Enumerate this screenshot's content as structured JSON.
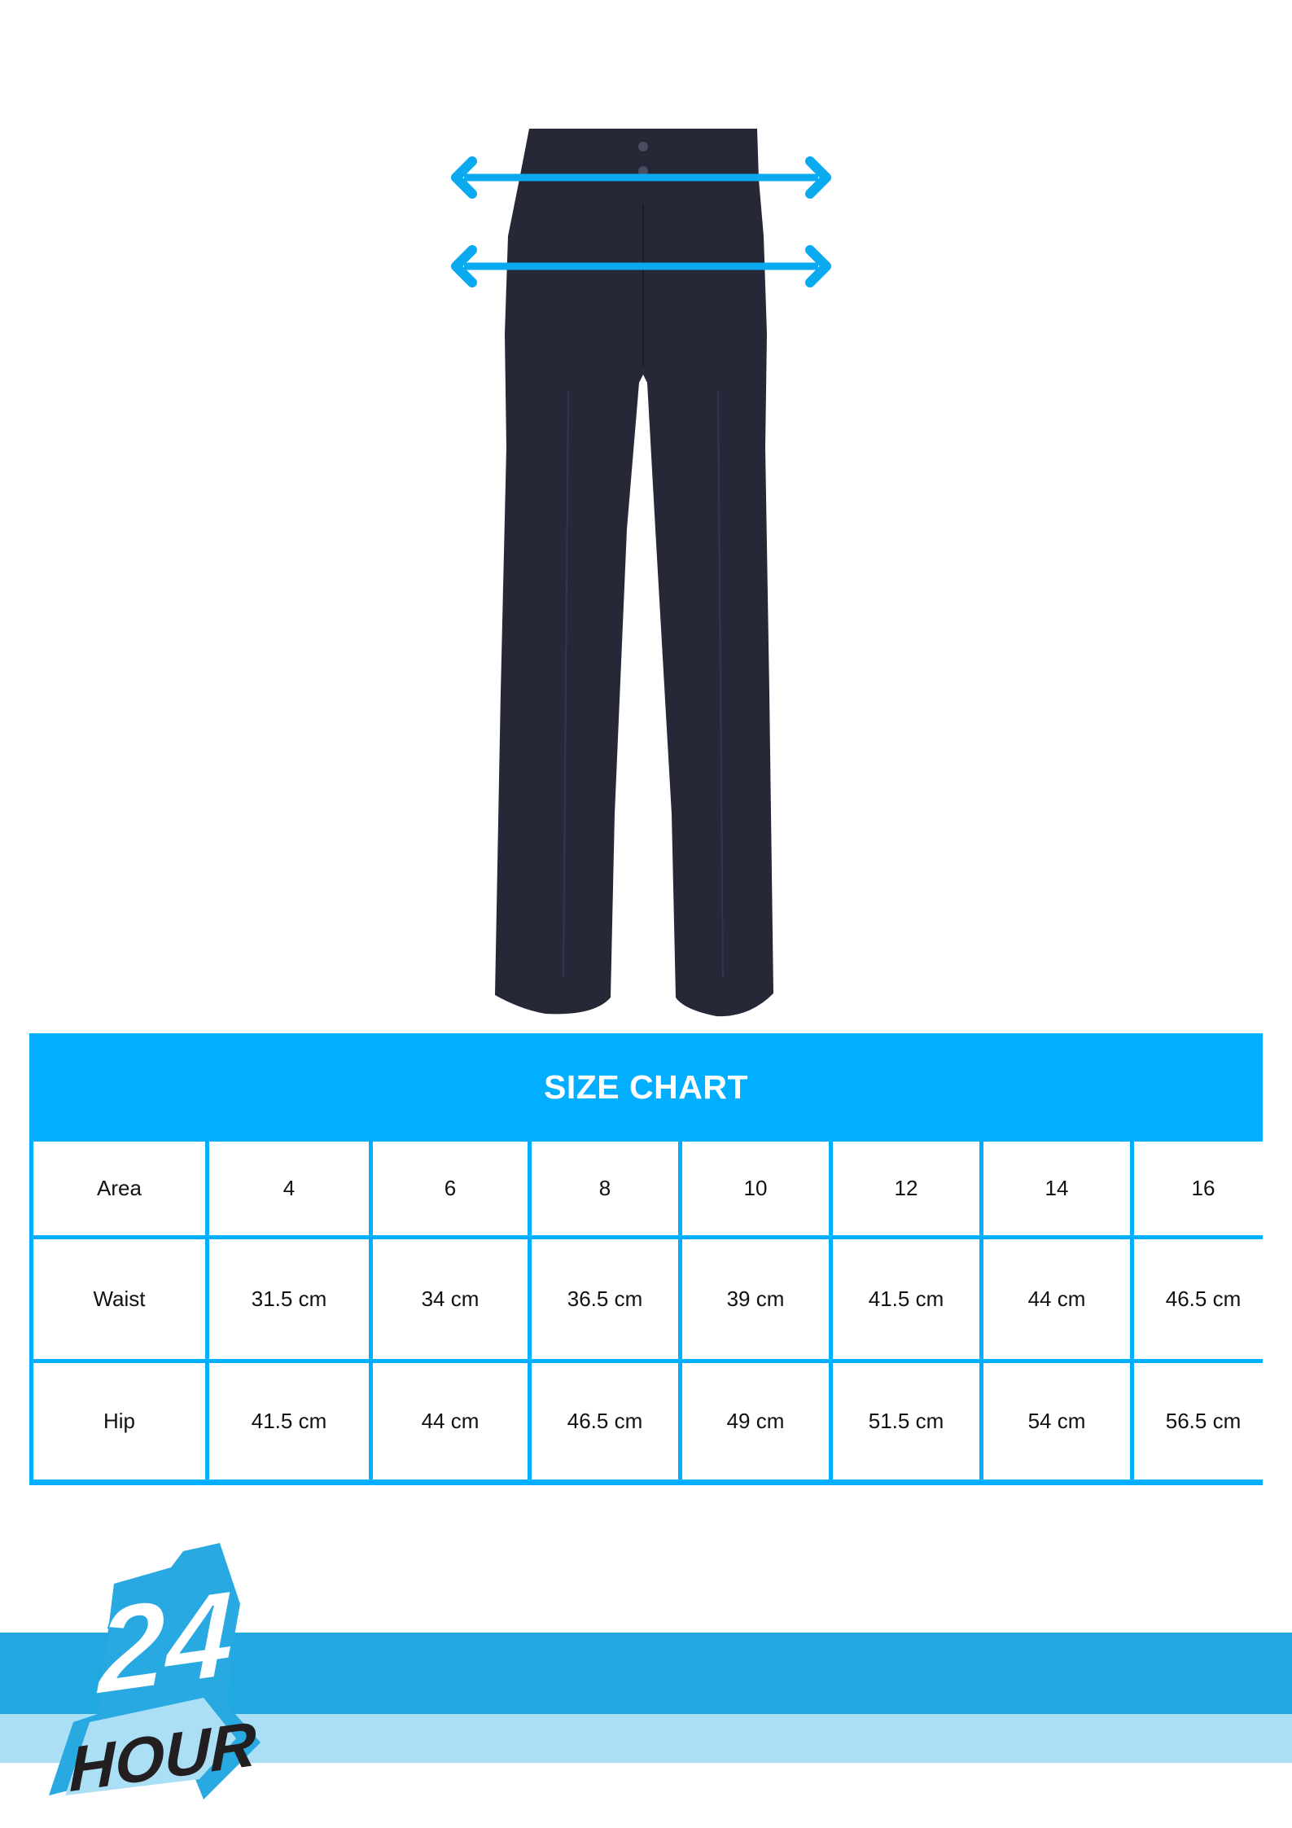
{
  "chart_data": {
    "type": "table",
    "title": "SIZE CHART",
    "columns": [
      "Area",
      "4",
      "6",
      "8",
      "10",
      "12",
      "14",
      "16"
    ],
    "rows": [
      {
        "label": "Waist",
        "values": [
          "31.5 cm",
          "34 cm",
          "36.5 cm",
          "39 cm",
          "41.5 cm",
          "44 cm",
          "46.5 cm"
        ]
      },
      {
        "label": "Hip",
        "values": [
          "41.5 cm",
          "44 cm",
          "46.5 cm",
          "49 cm",
          "51.5 cm",
          "54 cm",
          "56.5 cm"
        ]
      }
    ]
  },
  "product": {
    "image": "navy-trousers",
    "measure_markers": [
      "waist-arrow",
      "hip-arrow"
    ]
  },
  "logo": {
    "text_top": "24",
    "text_bottom": "HOUR"
  },
  "colors": {
    "accent": "#02aeff",
    "band_dark": "#21a8e0",
    "band_light": "#abdff5",
    "pants": "#262838",
    "arrow": "#0aa9f0"
  }
}
